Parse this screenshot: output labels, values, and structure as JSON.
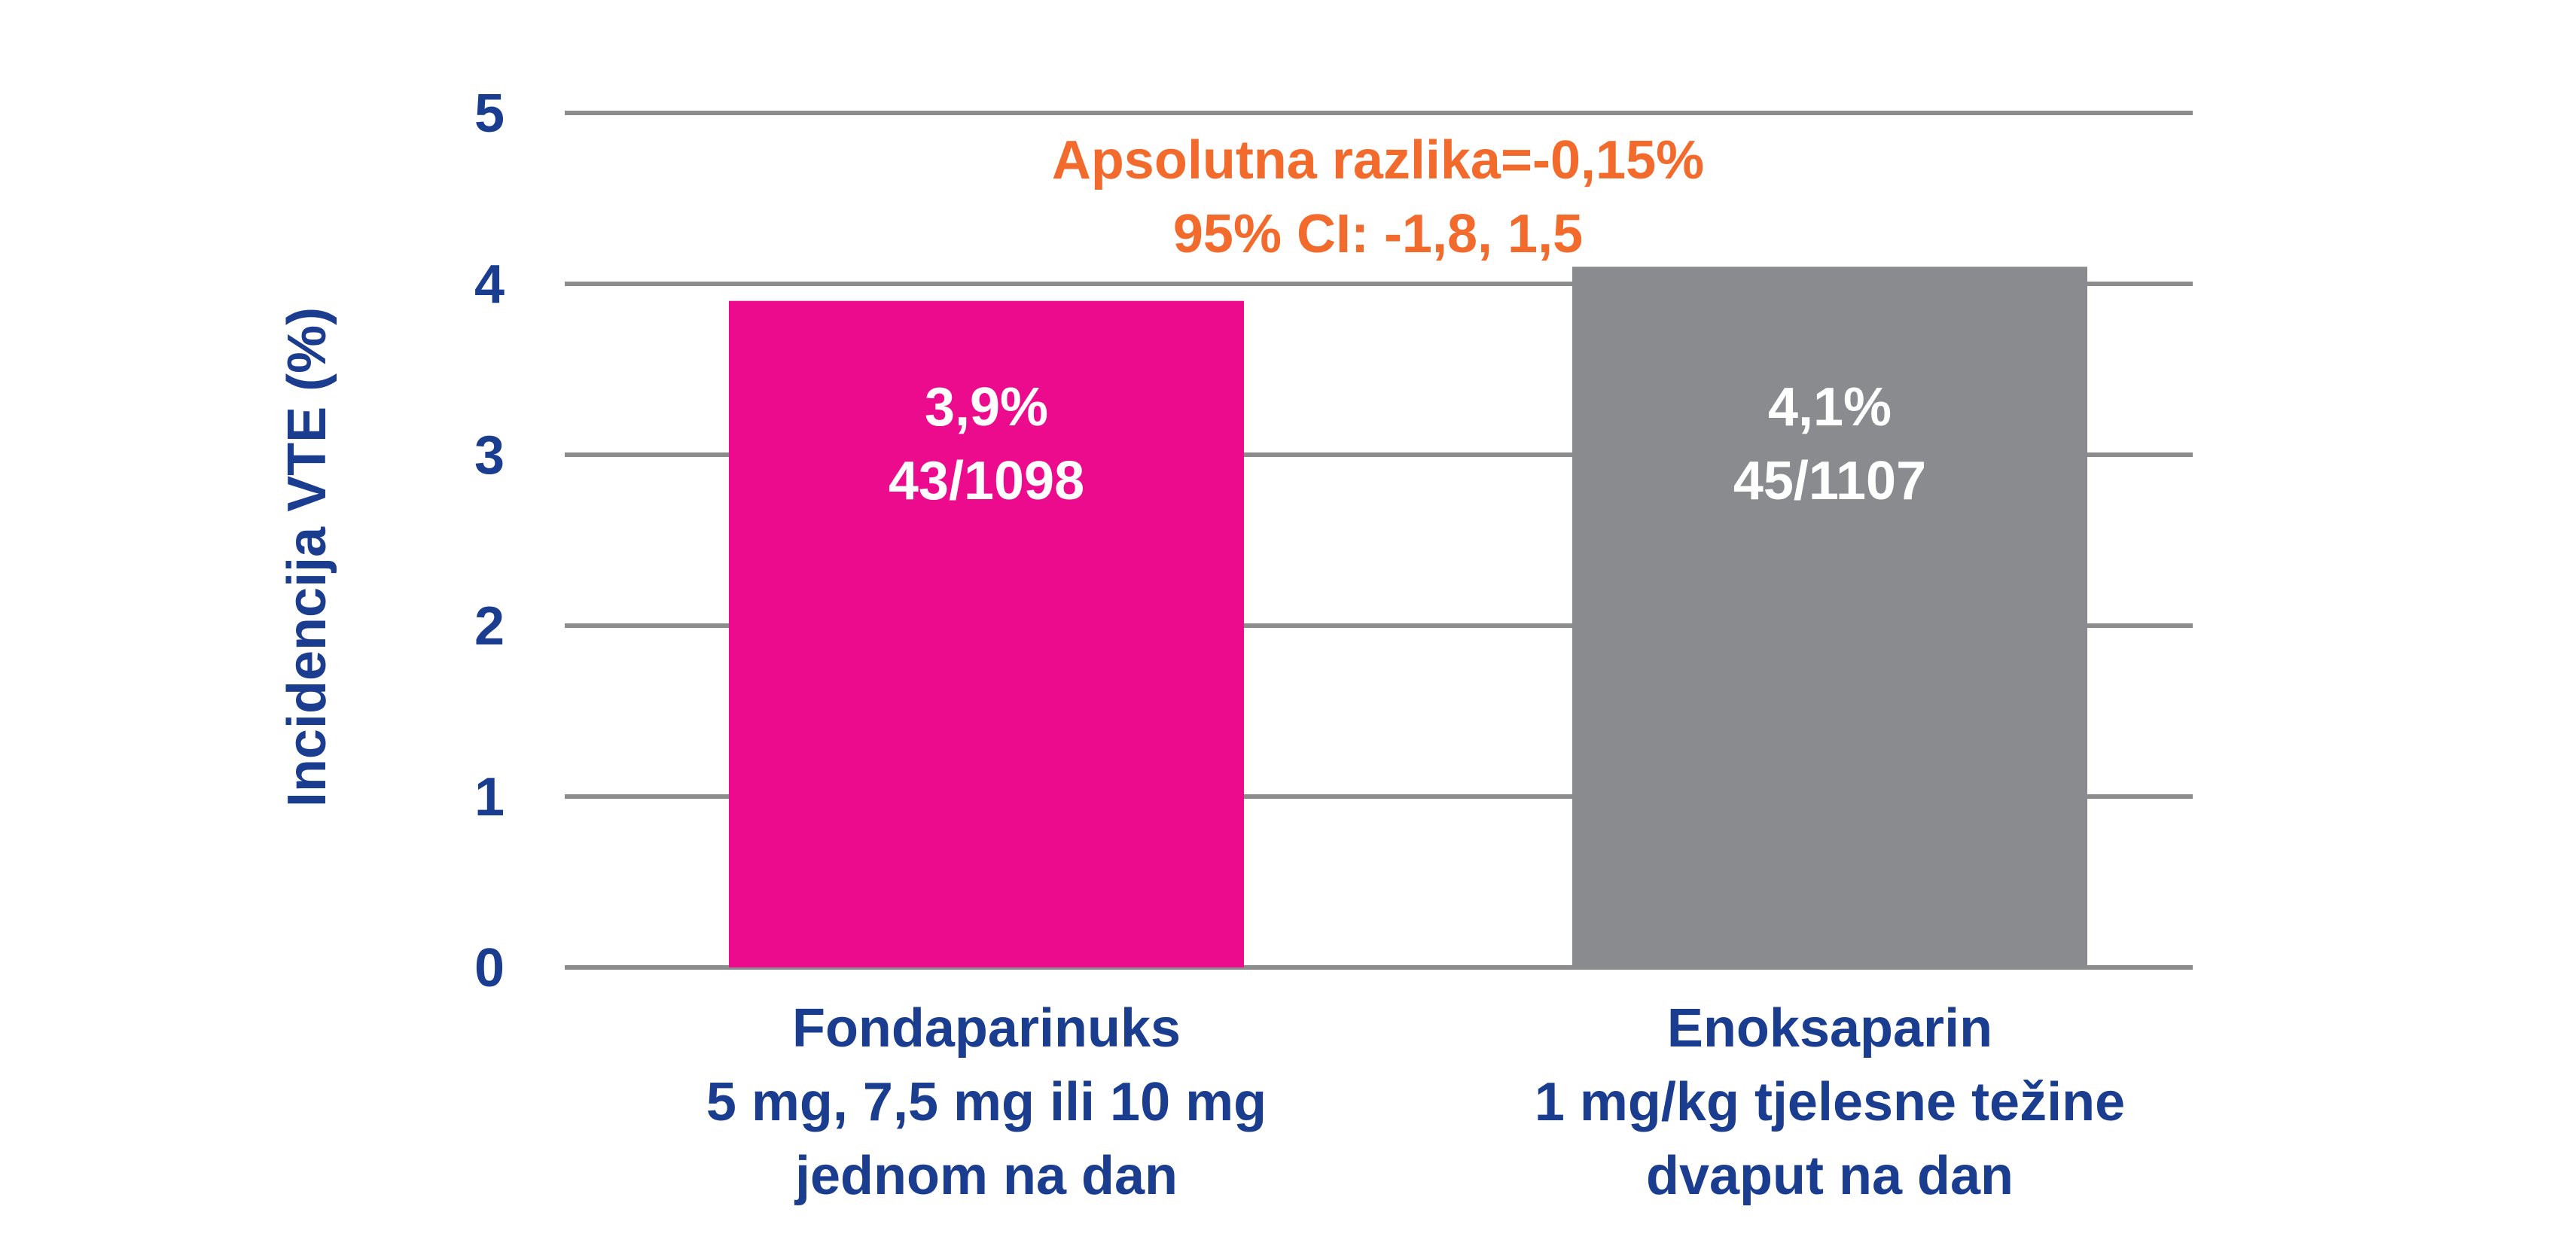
{
  "chart_data": {
    "type": "bar",
    "ylabel": "Incidencija VTE (%)",
    "ylim": [
      0,
      5
    ],
    "yticks": [
      0,
      1,
      2,
      3,
      4,
      5
    ],
    "grid": true,
    "categories": [
      [
        "Fondaparinuks",
        "5 mg, 7,5 mg ili 10 mg",
        "jednom na dan"
      ],
      [
        "Enoksaparin",
        "1 mg/kg tjelesne težine",
        "dvaput na dan"
      ]
    ],
    "values": [
      3.9,
      4.1
    ],
    "data_labels": [
      [
        "3,9%",
        "43/1098"
      ],
      [
        "4,1%",
        "45/1107"
      ]
    ],
    "colors": [
      "#ec0b8c",
      "#8a8b8f"
    ],
    "annotation": [
      "Apsolutna razlika=-0,15%",
      "95% CI: -1,8, 1,5"
    ],
    "text_color": "#1a3d8f",
    "annotation_color": "#f26b2d"
  }
}
